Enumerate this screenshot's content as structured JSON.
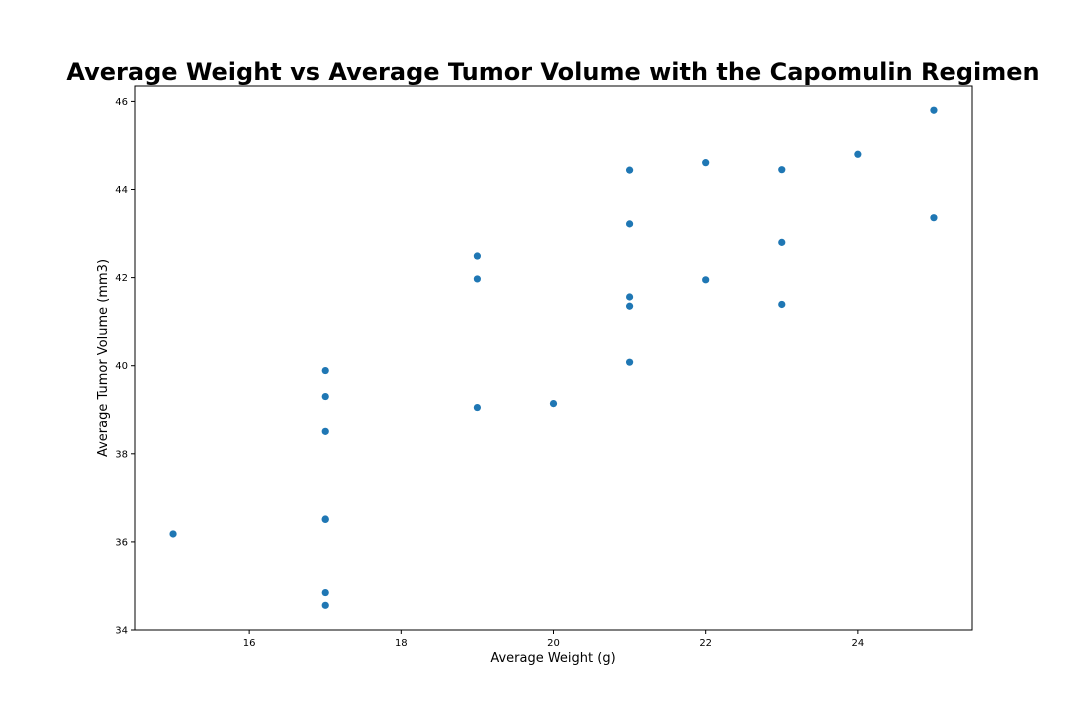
{
  "chart_data": {
    "type": "scatter",
    "title": "Average Weight vs Average Tumor Volume with the Capomulin Regimen",
    "xlabel": "Average Weight (g)",
    "ylabel": "Average Tumor Volume (mm3)",
    "xlim": [
      14.5,
      25.5
    ],
    "ylim": [
      34,
      46.35
    ],
    "x_ticks": [
      16,
      18,
      20,
      22,
      24
    ],
    "y_ticks": [
      34,
      36,
      38,
      40,
      42,
      44,
      46
    ],
    "grid": false,
    "legend": "none",
    "marker_color": "#1f77b4",
    "points": [
      {
        "x": 15,
        "y": 36.18
      },
      {
        "x": 17,
        "y": 34.56
      },
      {
        "x": 17,
        "y": 34.85
      },
      {
        "x": 17,
        "y": 36.51
      },
      {
        "x": 17,
        "y": 36.52
      },
      {
        "x": 17,
        "y": 38.51
      },
      {
        "x": 17,
        "y": 39.3
      },
      {
        "x": 17,
        "y": 39.89
      },
      {
        "x": 19,
        "y": 39.05
      },
      {
        "x": 19,
        "y": 41.97
      },
      {
        "x": 19,
        "y": 42.49
      },
      {
        "x": 20,
        "y": 39.14
      },
      {
        "x": 21,
        "y": 40.08
      },
      {
        "x": 21,
        "y": 41.35
      },
      {
        "x": 21,
        "y": 41.56
      },
      {
        "x": 21,
        "y": 43.22
      },
      {
        "x": 21,
        "y": 44.44
      },
      {
        "x": 22,
        "y": 41.95
      },
      {
        "x": 22,
        "y": 44.61
      },
      {
        "x": 23,
        "y": 41.39
      },
      {
        "x": 23,
        "y": 42.8
      },
      {
        "x": 23,
        "y": 44.45
      },
      {
        "x": 24,
        "y": 44.8
      },
      {
        "x": 25,
        "y": 43.36
      },
      {
        "x": 25,
        "y": 45.8
      }
    ]
  }
}
